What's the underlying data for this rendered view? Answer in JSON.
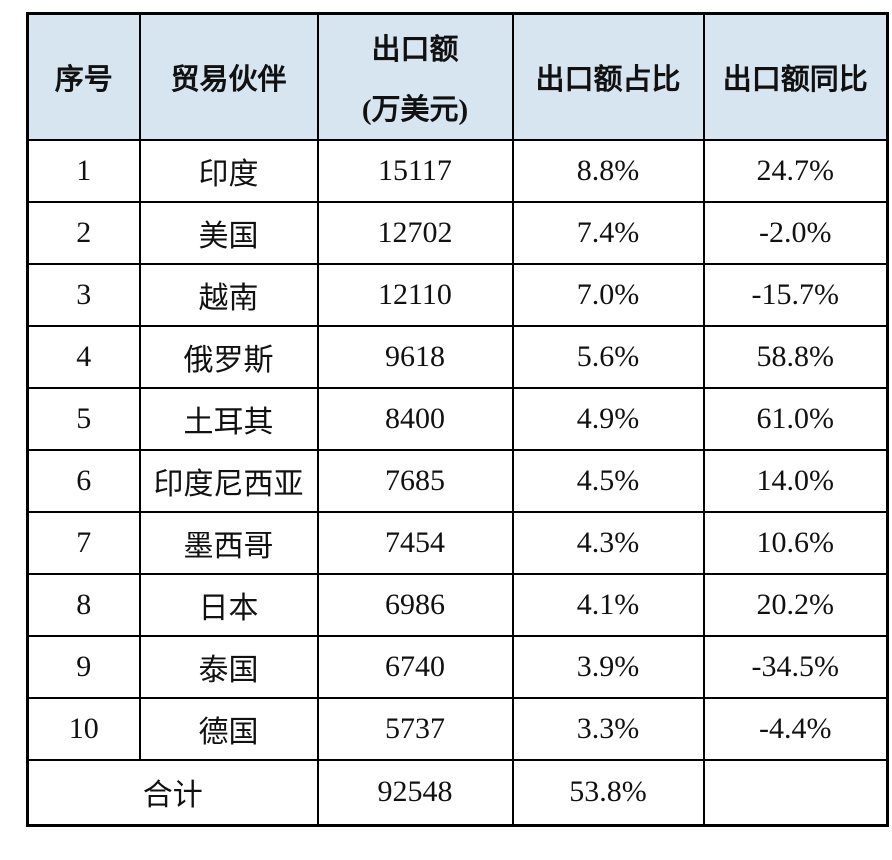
{
  "colors": {
    "header_bg": "#d7e5f1",
    "border": "#000000",
    "text": "#111111",
    "page_bg": "#ffffff"
  },
  "table": {
    "columns": {
      "rank": "序号",
      "partner": "贸易伙伴",
      "export": "出口额",
      "export_sub": "(万美元)",
      "share": "出口额占比",
      "yoy": "出口额同比"
    },
    "rows": [
      {
        "rank": "1",
        "partner": "印度",
        "export": "15117",
        "share": "8.8%",
        "yoy": "24.7%"
      },
      {
        "rank": "2",
        "partner": "美国",
        "export": "12702",
        "share": "7.4%",
        "yoy": "-2.0%"
      },
      {
        "rank": "3",
        "partner": "越南",
        "export": "12110",
        "share": "7.0%",
        "yoy": "-15.7%"
      },
      {
        "rank": "4",
        "partner": "俄罗斯",
        "export": "9618",
        "share": "5.6%",
        "yoy": "58.8%"
      },
      {
        "rank": "5",
        "partner": "土耳其",
        "export": "8400",
        "share": "4.9%",
        "yoy": "61.0%"
      },
      {
        "rank": "6",
        "partner": "印度尼西亚",
        "export": "7685",
        "share": "4.5%",
        "yoy": "14.0%"
      },
      {
        "rank": "7",
        "partner": "墨西哥",
        "export": "7454",
        "share": "4.3%",
        "yoy": "10.6%"
      },
      {
        "rank": "8",
        "partner": "日本",
        "export": "6986",
        "share": "4.1%",
        "yoy": "20.2%"
      },
      {
        "rank": "9",
        "partner": "泰国",
        "export": "6740",
        "share": "3.9%",
        "yoy": "-34.5%"
      },
      {
        "rank": "10",
        "partner": "德国",
        "export": "5737",
        "share": "3.3%",
        "yoy": "-4.4%"
      }
    ],
    "total": {
      "label": "合计",
      "export": "92548",
      "share": "53.8%",
      "yoy": ""
    }
  }
}
